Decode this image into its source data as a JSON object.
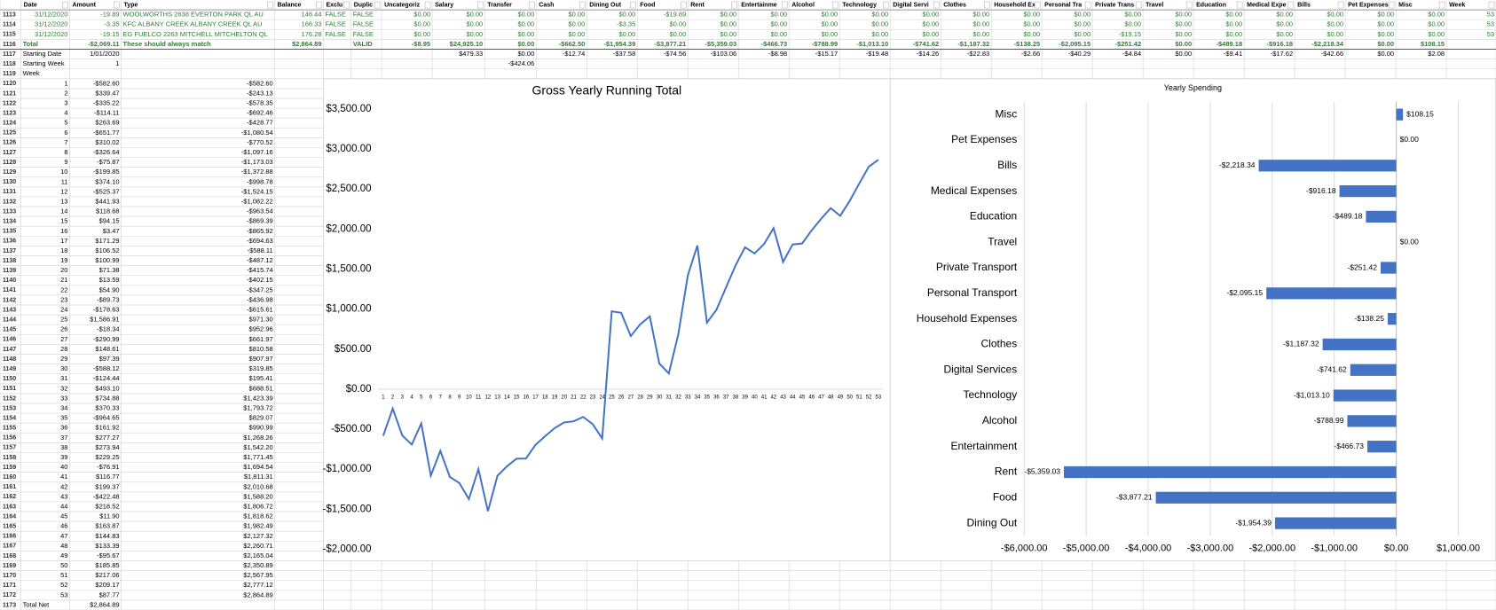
{
  "sheet": {
    "header": [
      "Date",
      "Amount",
      "Type",
      "Balance",
      "Exclu",
      "Duplic",
      "Uncategoriz",
      "Salary",
      "Transfer",
      "Cash",
      "Dining Out",
      "Food",
      "Rent",
      "Entertainme",
      "Alcohol",
      "Technology",
      "Digital Servi",
      "Clothes",
      "Household Ex",
      "Personal Tra",
      "Private Trans",
      "Travel",
      "Education",
      "Medical Expe",
      "Bills",
      "Pet Expenses",
      "Misc",
      "Week"
    ],
    "rows": [
      {
        "num": "1113",
        "cells": [
          "31/12/2020",
          "-19.89",
          "WOOLWORTHS 2638 EVERTON PARK QL AU",
          "146.44",
          "FALSE",
          "FALSE",
          "$0.00",
          "$0.00",
          "$0.00",
          "$0.00",
          "$0.00",
          "-$19.89",
          "$0.00",
          "$0.00",
          "$0.00",
          "$0.00",
          "$0.00",
          "$0.00",
          "$0.00",
          "$0.00",
          "$0.00",
          "$0.00",
          "$0.00",
          "$0.00",
          "$0.00",
          "$0.00",
          "$0.00",
          "53"
        ]
      },
      {
        "num": "1114",
        "cells": [
          "31/12/2020",
          "-3.35",
          "KFC ALBANY CREEK ALBANY CREEK QL AU",
          "166.33",
          "FALSE",
          "FALSE",
          "$0.00",
          "$0.00",
          "$0.00",
          "$0.00",
          "-$3.35",
          "$0.00",
          "$0.00",
          "$0.00",
          "$0.00",
          "$0.00",
          "$0.00",
          "$0.00",
          "$0.00",
          "$0.00",
          "$0.00",
          "$0.00",
          "$0.00",
          "$0.00",
          "$0.00",
          "$0.00",
          "$0.00",
          "53"
        ]
      },
      {
        "num": "1115",
        "cells": [
          "31/12/2020",
          "-19.15",
          "EG FUELCO 2263 MITCHELL MITCHELTON QL",
          "176.28",
          "FALSE",
          "FALSE",
          "$0.00",
          "$0.00",
          "$0.00",
          "$0.00",
          "$0.00",
          "$0.00",
          "$0.00",
          "$0.00",
          "$0.00",
          "$0.00",
          "$0.00",
          "$0.00",
          "$0.00",
          "$0.00",
          "-$19.15",
          "$0.00",
          "$0.00",
          "$0.00",
          "$0.00",
          "$0.00",
          "$0.00",
          "53"
        ]
      },
      {
        "num": "1116",
        "cells": [
          "Total",
          "-$2,069.11",
          "These should always match",
          "$2,864.89",
          null,
          "VALID",
          "-$8.95",
          "$24,925.10",
          "$0.00",
          "-$662.50",
          "-$1,954.39",
          "-$3,877.21",
          "-$5,359.03",
          "-$466.73",
          "-$788.99",
          "-$1,013.10",
          "-$741.62",
          "-$1,187.32",
          "-$138.25",
          "-$2,095.15",
          "-$251.42",
          "$0.00",
          "-$489.18",
          "-$916.18",
          "-$2,218.34",
          "$0.00",
          "$108.15"
        ]
      },
      {
        "num": "1117",
        "cells": [
          "Starting Date",
          "1/01/2020",
          null,
          null,
          null,
          null,
          null,
          "$479.33",
          "$0.00",
          "-$12.74",
          "-$37.58",
          "-$74.56",
          "-$103.06",
          "-$8.98",
          "-$15.17",
          "-$19.48",
          "-$14.26",
          "-$22.83",
          "-$2.66",
          "-$40.29",
          "-$4.84",
          "$0.00",
          "-$9.41",
          "-$17.62",
          "-$42.66",
          "$0.00",
          "$2.08"
        ]
      },
      {
        "num": "1118",
        "cells": [
          "Starting Week",
          "1",
          null,
          null,
          null,
          null,
          null,
          null,
          "-$424.06"
        ]
      },
      {
        "num": "1119",
        "cells": [
          "Week"
        ]
      },
      {
        "num": "1120",
        "cells": [
          "1",
          "-$582.60",
          "-$582.60"
        ]
      },
      {
        "num": "1121",
        "cells": [
          "2",
          "$339.47",
          "-$243.13"
        ]
      },
      {
        "num": "1122",
        "cells": [
          "3",
          "-$335.22",
          "-$578.35"
        ]
      },
      {
        "num": "1123",
        "cells": [
          "4",
          "-$114.11",
          "-$692.46"
        ]
      },
      {
        "num": "1124",
        "cells": [
          "5",
          "$263.69",
          "-$428.77"
        ]
      },
      {
        "num": "1125",
        "cells": [
          "6",
          "-$651.77",
          "-$1,080.54"
        ]
      },
      {
        "num": "1126",
        "cells": [
          "7",
          "$310.02",
          "-$770.52"
        ]
      },
      {
        "num": "1127",
        "cells": [
          "8",
          "-$326.64",
          "-$1,097.16"
        ]
      },
      {
        "num": "1128",
        "cells": [
          "9",
          "-$75.87",
          "-$1,173.03"
        ]
      },
      {
        "num": "1129",
        "cells": [
          "10",
          "-$199.85",
          "-$1,372.88"
        ]
      },
      {
        "num": "1130",
        "cells": [
          "11",
          "$374.10",
          "-$998.78"
        ]
      },
      {
        "num": "1131",
        "cells": [
          "12",
          "-$525.37",
          "-$1,524.15"
        ]
      },
      {
        "num": "1132",
        "cells": [
          "13",
          "$441.93",
          "-$1,082.22"
        ]
      },
      {
        "num": "1133",
        "cells": [
          "14",
          "$118.68",
          "-$963.54"
        ]
      },
      {
        "num": "1134",
        "cells": [
          "15",
          "$94.15",
          "-$869.39"
        ]
      },
      {
        "num": "1135",
        "cells": [
          "16",
          "$3.47",
          "-$865.92"
        ]
      },
      {
        "num": "1136",
        "cells": [
          "17",
          "$171.29",
          "-$694.63"
        ]
      },
      {
        "num": "1137",
        "cells": [
          "18",
          "$106.52",
          "-$588.11"
        ]
      },
      {
        "num": "1138",
        "cells": [
          "19",
          "$100.99",
          "-$487.12"
        ]
      },
      {
        "num": "1139",
        "cells": [
          "20",
          "$71.38",
          "-$415.74"
        ]
      },
      {
        "num": "1140",
        "cells": [
          "21",
          "$13.59",
          "-$402.15"
        ]
      },
      {
        "num": "1141",
        "cells": [
          "22",
          "$54.90",
          "-$347.25"
        ]
      },
      {
        "num": "1142",
        "cells": [
          "23",
          "-$89.73",
          "-$436.98"
        ]
      },
      {
        "num": "1143",
        "cells": [
          "24",
          "-$178.63",
          "-$615.61"
        ]
      },
      {
        "num": "1144",
        "cells": [
          "25",
          "$1,586.91",
          "$971.30"
        ]
      },
      {
        "num": "1145",
        "cells": [
          "26",
          "-$18.34",
          "$952.96"
        ]
      },
      {
        "num": "1146",
        "cells": [
          "27",
          "-$290.99",
          "$661.97"
        ]
      },
      {
        "num": "1147",
        "cells": [
          "28",
          "$148.61",
          "$810.58"
        ]
      },
      {
        "num": "1148",
        "cells": [
          "29",
          "$97.39",
          "$907.97"
        ]
      },
      {
        "num": "1149",
        "cells": [
          "30",
          "-$588.12",
          "$319.85"
        ]
      },
      {
        "num": "1150",
        "cells": [
          "31",
          "-$124.44",
          "$195.41"
        ]
      },
      {
        "num": "1151",
        "cells": [
          "32",
          "$493.10",
          "$688.51"
        ]
      },
      {
        "num": "1152",
        "cells": [
          "33",
          "$734.88",
          "$1,423.39"
        ]
      },
      {
        "num": "1153",
        "cells": [
          "34",
          "$370.33",
          "$1,793.72"
        ]
      },
      {
        "num": "1154",
        "cells": [
          "35",
          "-$964.65",
          "$829.07"
        ]
      },
      {
        "num": "1155",
        "cells": [
          "36",
          "$161.92",
          "$990.99"
        ]
      },
      {
        "num": "1156",
        "cells": [
          "37",
          "$277.27",
          "$1,268.26"
        ]
      },
      {
        "num": "1157",
        "cells": [
          "38",
          "$273.94",
          "$1,542.20"
        ]
      },
      {
        "num": "1158",
        "cells": [
          "39",
          "$229.25",
          "$1,771.45"
        ]
      },
      {
        "num": "1159",
        "cells": [
          "40",
          "-$76.91",
          "$1,694.54"
        ]
      },
      {
        "num": "1160",
        "cells": [
          "41",
          "$116.77",
          "$1,811.31"
        ]
      },
      {
        "num": "1161",
        "cells": [
          "42",
          "$199.37",
          "$2,010.68"
        ]
      },
      {
        "num": "1162",
        "cells": [
          "43",
          "-$422.48",
          "$1,588.20"
        ]
      },
      {
        "num": "1163",
        "cells": [
          "44",
          "$218.52",
          "$1,806.72"
        ]
      },
      {
        "num": "1164",
        "cells": [
          "45",
          "$11.90",
          "$1,818.62"
        ]
      },
      {
        "num": "1165",
        "cells": [
          "46",
          "$163.87",
          "$1,982.49"
        ]
      },
      {
        "num": "1166",
        "cells": [
          "47",
          "$144.83",
          "$2,127.32"
        ]
      },
      {
        "num": "1167",
        "cells": [
          "48",
          "$133.39",
          "$2,260.71"
        ]
      },
      {
        "num": "1168",
        "cells": [
          "49",
          "-$95.67",
          "$2,165.04"
        ]
      },
      {
        "num": "1169",
        "cells": [
          "50",
          "$185.85",
          "$2,350.89"
        ]
      },
      {
        "num": "1170",
        "cells": [
          "51",
          "$217.06",
          "$2,567.95"
        ]
      },
      {
        "num": "1171",
        "cells": [
          "52",
          "$209.17",
          "$2,777.12"
        ]
      },
      {
        "num": "1172",
        "cells": [
          "53",
          "$87.77",
          "$2,864.89"
        ]
      },
      {
        "num": "1173",
        "cells": [
          "Total Net",
          "$2,864.89"
        ]
      }
    ]
  },
  "chart_data": [
    {
      "type": "line",
      "title": "Gross Yearly Running Total",
      "color": "#4472c4",
      "categories": [
        "1",
        "2",
        "3",
        "4",
        "5",
        "6",
        "7",
        "8",
        "9",
        "10",
        "11",
        "12",
        "13",
        "14",
        "15",
        "16",
        "17",
        "18",
        "19",
        "20",
        "21",
        "22",
        "23",
        "24",
        "25",
        "26",
        "27",
        "28",
        "29",
        "30",
        "31",
        "32",
        "33",
        "34",
        "35",
        "36",
        "37",
        "38",
        "39",
        "40",
        "41",
        "42",
        "43",
        "44",
        "45",
        "46",
        "47",
        "48",
        "49",
        "50",
        "51",
        "52",
        "53"
      ],
      "values": [
        -582.6,
        -243.13,
        -578.35,
        -692.46,
        -428.77,
        -1080.54,
        -770.52,
        -1097.16,
        -1173.03,
        -1372.88,
        -998.78,
        -1524.15,
        -1082.22,
        -963.54,
        -869.39,
        -865.92,
        -694.63,
        -588.11,
        -487.12,
        -415.74,
        -402.15,
        -347.25,
        -436.98,
        -615.61,
        971.3,
        952.96,
        661.97,
        810.58,
        907.97,
        319.85,
        195.41,
        688.51,
        1423.39,
        1793.72,
        829.07,
        990.99,
        1268.26,
        1542.2,
        1771.45,
        1694.54,
        1811.31,
        2010.68,
        1588.2,
        1806.72,
        1818.62,
        1982.49,
        2127.32,
        2260.71,
        2165.04,
        2350.89,
        2567.95,
        2777.12,
        2864.89
      ],
      "ylim": [
        -2000,
        3500
      ],
      "yticks": [
        {
          "value": -2000,
          "label": "-$2,000.00"
        },
        {
          "value": -1500,
          "label": "-$1,500.00"
        },
        {
          "value": -1000,
          "label": "-$1,000.00"
        },
        {
          "value": -500,
          "label": "-$500.00"
        },
        {
          "value": 0,
          "label": "$0.00"
        },
        {
          "value": 500,
          "label": "$500.00"
        },
        {
          "value": 1000,
          "label": "$1,000.00"
        },
        {
          "value": 1500,
          "label": "$1,500.00"
        },
        {
          "value": 2000,
          "label": "$2,000.00"
        },
        {
          "value": 2500,
          "label": "$2,500.00"
        },
        {
          "value": 3000,
          "label": "$3,000.00"
        },
        {
          "value": 3500,
          "label": "$3,500.00"
        }
      ],
      "grid": false
    },
    {
      "type": "hbar",
      "title": "Yearly Spending",
      "color": "#4472c4",
      "categories": [
        "Misc",
        "Pet Expenses",
        "Bills",
        "Medical Expenses",
        "Education",
        "Travel",
        "Private Transport",
        "Personal Transport",
        "Household Expenses",
        "Clothes",
        "Digital Services",
        "Technology",
        "Alcohol",
        "Entertainment",
        "Rent",
        "Food",
        "Dining Out"
      ],
      "values": [
        108.15,
        0,
        -2218.34,
        -916.18,
        -489.18,
        0,
        -251.42,
        -2095.15,
        -138.25,
        -1187.32,
        -741.62,
        -1013.1,
        -788.99,
        -466.73,
        -5359.03,
        -3877.21,
        -1954.39
      ],
      "value_labels": [
        "$108.15",
        "$0.00",
        "-$2,218.34",
        "-$916.18",
        "-$489.18",
        "$0.00",
        "-$251.42",
        "-$2,095.15",
        "-$138.25",
        "-$1,187.32",
        "-$741.62",
        "-$1,013.10",
        "-$788.99",
        "-$466.73",
        "-$5,359.03",
        "-$3,877.21",
        "-$1,954.39"
      ],
      "xlim": [
        -6000,
        1000
      ],
      "xticks": [
        {
          "value": -6000,
          "label": "-$6,000.00"
        },
        {
          "value": -5000,
          "label": "-$5,000.00"
        },
        {
          "value": -4000,
          "label": "-$4,000.00"
        },
        {
          "value": -3000,
          "label": "-$3,000.00"
        },
        {
          "value": -2000,
          "label": "-$2,000.00"
        },
        {
          "value": -1000,
          "label": "-$1,000.00"
        },
        {
          "value": 0,
          "label": "$0.00"
        },
        {
          "value": 1000,
          "label": "$1,000.00"
        }
      ],
      "grid": true
    }
  ]
}
